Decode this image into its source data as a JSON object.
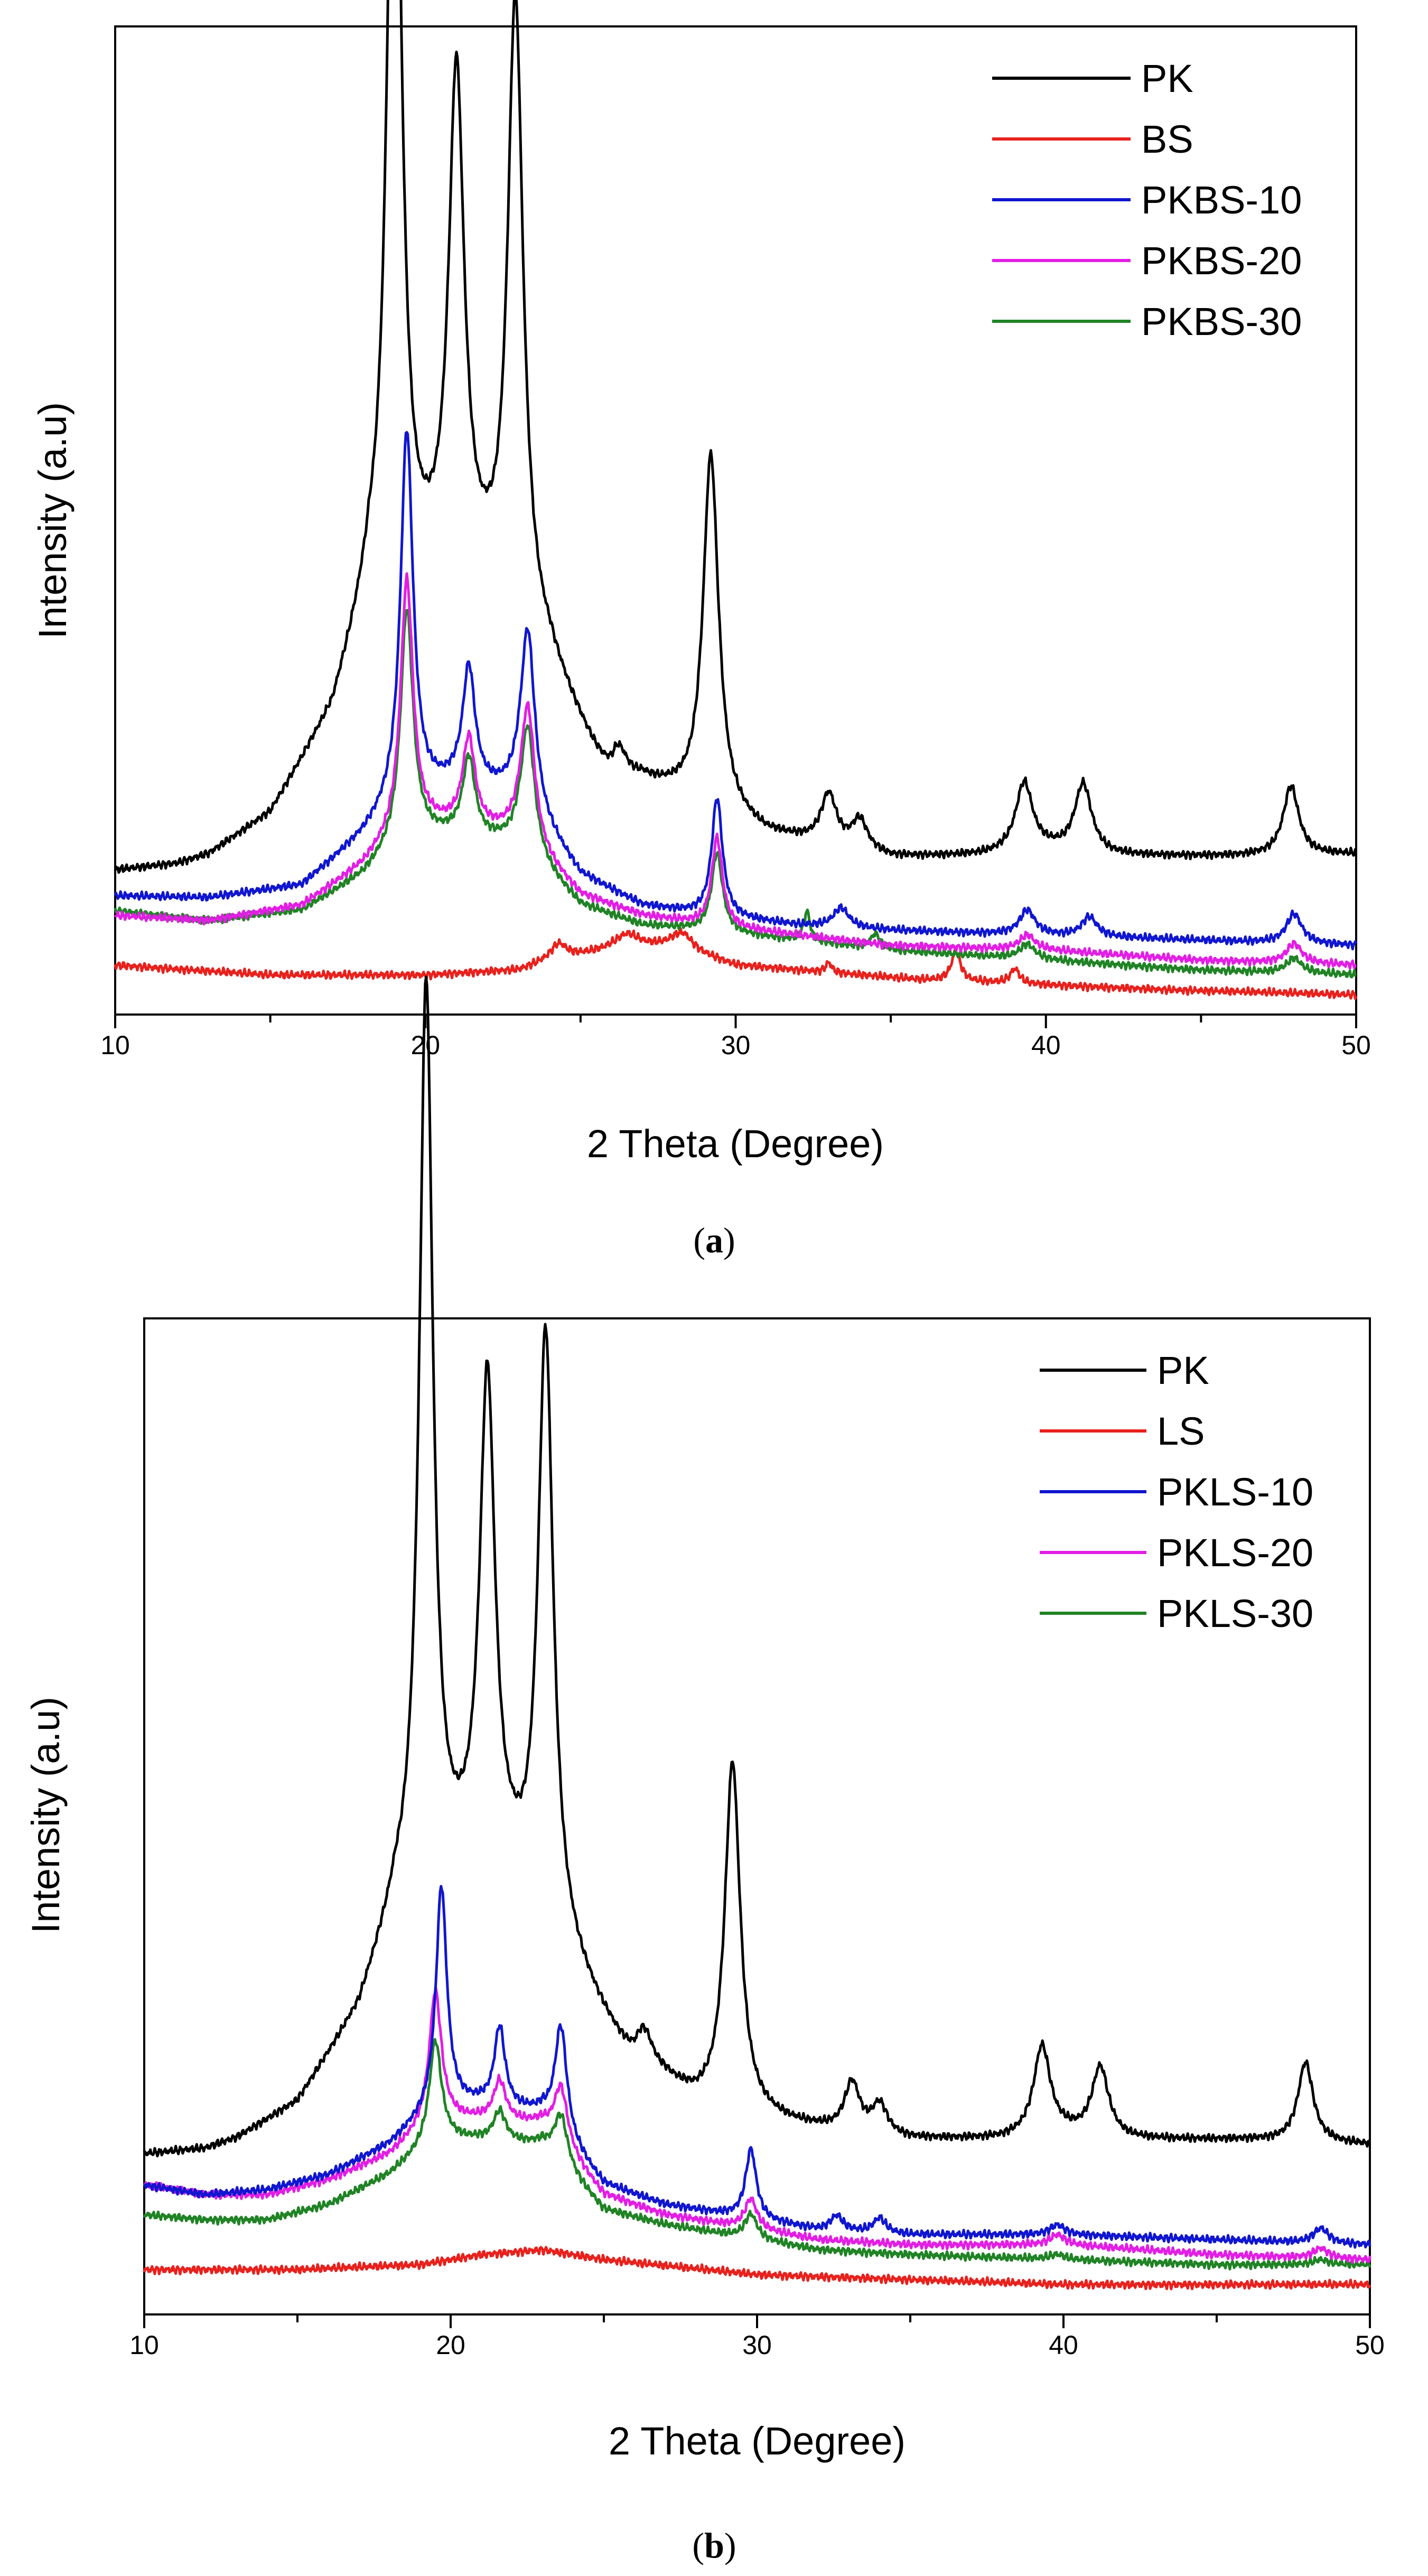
{
  "figure": {
    "panels": [
      "a",
      "b"
    ]
  },
  "chart_data": [
    {
      "type": "line",
      "panel_label": "a",
      "title": "",
      "xlabel": "2 Theta (Degree)",
      "ylabel": "Intensity (a.u)",
      "xlim": [
        10,
        50
      ],
      "ylim": [
        0,
        100
      ],
      "xticks": [
        10,
        20,
        30,
        40,
        50
      ],
      "yticks_shown": false,
      "legend_position": "top-right",
      "series": [
        {
          "name": "PK",
          "color": "#000000",
          "baseline": [
            [
              10,
              14.5
            ],
            [
              12,
              15.1
            ],
            [
              13,
              16
            ],
            [
              15,
              20
            ],
            [
              17,
              30
            ],
            [
              18.2,
              42
            ],
            [
              19,
              42
            ],
            [
              20,
              43
            ],
            [
              21,
              44
            ],
            [
              22,
              42
            ],
            [
              24,
              35
            ],
            [
              26,
              22
            ],
            [
              27,
              23
            ],
            [
              28,
              22
            ],
            [
              31,
              18
            ],
            [
              33,
              17
            ],
            [
              35,
              15.8
            ],
            [
              38,
              16
            ],
            [
              40,
              16.5
            ],
            [
              42,
              16
            ],
            [
              46,
              16
            ],
            [
              50,
              16.2
            ]
          ],
          "peaks": [
            [
              19.0,
              95,
              0.45
            ],
            [
              21.0,
              50,
              0.5
            ],
            [
              22.9,
              63,
              0.5
            ],
            [
              26.2,
              4,
              0.6
            ],
            [
              29.2,
              36,
              0.5
            ],
            [
              33.0,
              5,
              0.5
            ],
            [
              34.0,
              3,
              0.5
            ],
            [
              39.3,
              7,
              0.55
            ],
            [
              41.2,
              7,
              0.55
            ],
            [
              47.9,
              7,
              0.5
            ]
          ]
        },
        {
          "name": "BS",
          "color": "#e8211d",
          "baseline": [
            [
              10,
              5
            ],
            [
              15,
              4
            ],
            [
              20,
              4
            ],
            [
              23,
              4.5
            ],
            [
              24,
              5.5
            ],
            [
              26,
              6.5
            ],
            [
              28,
              7
            ],
            [
              30,
              5
            ],
            [
              32,
              4.5
            ],
            [
              36,
              3.5
            ],
            [
              40,
              3
            ],
            [
              44,
              2.5
            ],
            [
              50,
              2
            ]
          ],
          "peaks": [
            [
              24.3,
              1.5,
              0.5
            ],
            [
              26.5,
              1.5,
              0.8
            ],
            [
              28.3,
              1.5,
              0.6
            ],
            [
              33.0,
              1,
              0.2
            ],
            [
              37.1,
              3,
              0.3
            ],
            [
              39.0,
              1.5,
              0.3
            ]
          ]
        },
        {
          "name": "PKBS-10",
          "color": "#1016cf",
          "baseline": [
            [
              10,
              12
            ],
            [
              13,
              11.8
            ],
            [
              16,
              13
            ],
            [
              18,
              18
            ],
            [
              19.3,
              22
            ],
            [
              21,
              23
            ],
            [
              23,
              22
            ],
            [
              25,
              14
            ],
            [
              27,
              11
            ],
            [
              29,
              10
            ],
            [
              32,
              9
            ],
            [
              35,
              8.5
            ],
            [
              40,
              8
            ],
            [
              45,
              7.5
            ],
            [
              50,
              7
            ]
          ],
          "peaks": [
            [
              19.4,
              37,
              0.4
            ],
            [
              21.4,
              12,
              0.4
            ],
            [
              23.3,
              18,
              0.45
            ],
            [
              29.4,
              12,
              0.35
            ],
            [
              33.4,
              2,
              0.5
            ],
            [
              39.4,
              2.5,
              0.5
            ],
            [
              41.4,
              2,
              0.5
            ],
            [
              48.0,
              3,
              0.5
            ]
          ]
        },
        {
          "name": "PKBS-20",
          "color": "#e21ee4",
          "baseline": [
            [
              10,
              10
            ],
            [
              13,
              9.5
            ],
            [
              16,
              11
            ],
            [
              18,
              15
            ],
            [
              19.4,
              19
            ],
            [
              21,
              19
            ],
            [
              23,
              18
            ],
            [
              25,
              12
            ],
            [
              27,
              10
            ],
            [
              29,
              9
            ],
            [
              32,
              8
            ],
            [
              35,
              7
            ],
            [
              40,
              6.5
            ],
            [
              45,
              5.5
            ],
            [
              50,
              5
            ]
          ],
          "peaks": [
            [
              19.4,
              25,
              0.4
            ],
            [
              21.4,
              9,
              0.4
            ],
            [
              23.3,
              14,
              0.45
            ],
            [
              29.4,
              9,
              0.35
            ],
            [
              39.4,
              1.5,
              0.5
            ],
            [
              48.0,
              2,
              0.5
            ]
          ]
        },
        {
          "name": "PKBS-30",
          "color": "#208325",
          "baseline": [
            [
              10,
              10.5
            ],
            [
              13,
              9.5
            ],
            [
              16,
              10.5
            ],
            [
              18,
              14
            ],
            [
              19.4,
              18
            ],
            [
              21,
              18
            ],
            [
              23,
              17
            ],
            [
              25,
              11
            ],
            [
              27,
              9
            ],
            [
              29,
              8.5
            ],
            [
              32,
              7.5
            ],
            [
              35,
              6.5
            ],
            [
              40,
              5.5
            ],
            [
              45,
              4.5
            ],
            [
              50,
              4
            ]
          ],
          "peaks": [
            [
              19.4,
              23,
              0.4
            ],
            [
              21.4,
              8,
              0.4
            ],
            [
              23.3,
              13,
              0.45
            ],
            [
              29.4,
              8,
              0.35
            ],
            [
              32.3,
              3,
              0.2
            ],
            [
              34.5,
              1.5,
              0.3
            ],
            [
              39.4,
              1.5,
              0.5
            ],
            [
              48.0,
              1.5,
              0.5
            ]
          ]
        }
      ]
    },
    {
      "type": "line",
      "panel_label": "b",
      "title": "",
      "xlabel": "2 Theta (Degree)",
      "ylabel": "Intensity (a.u)",
      "xlim": [
        10,
        50
      ],
      "ylim": [
        0,
        100
      ],
      "xticks": [
        10,
        20,
        30,
        40,
        50
      ],
      "yticks_shown": false,
      "legend_position": "top-right",
      "series": [
        {
          "name": "PK",
          "color": "#000000",
          "baseline": [
            [
              10,
              16
            ],
            [
              12,
              16.5
            ],
            [
              13,
              17.5
            ],
            [
              15,
              21
            ],
            [
              17,
              30
            ],
            [
              18.2,
              40
            ],
            [
              19.2,
              42
            ],
            [
              20,
              43
            ],
            [
              21,
              44
            ],
            [
              22,
              42
            ],
            [
              24,
              34
            ],
            [
              26,
              24
            ],
            [
              27,
              23
            ],
            [
              28,
              21
            ],
            [
              31,
              19
            ],
            [
              33,
              18
            ],
            [
              35,
              17.5
            ],
            [
              38,
              17.5
            ],
            [
              40,
              18
            ],
            [
              42,
              17.5
            ],
            [
              46,
              17.5
            ],
            [
              50,
              17
            ]
          ],
          "peaks": [
            [
              19.2,
              91,
              0.45
            ],
            [
              21.2,
              49,
              0.5
            ],
            [
              23.1,
              60,
              0.5
            ],
            [
              26.3,
              4,
              0.6
            ],
            [
              29.2,
              35,
              0.5
            ],
            [
              33.1,
              5,
              0.5
            ],
            [
              34.0,
              3,
              0.5
            ],
            [
              39.3,
              9,
              0.55
            ],
            [
              41.2,
              7,
              0.55
            ],
            [
              47.9,
              8,
              0.5
            ]
          ]
        },
        {
          "name": "LS",
          "color": "#e8211d",
          "baseline": [
            [
              10,
              4.5
            ],
            [
              15,
              4.5
            ],
            [
              19,
              5
            ],
            [
              21,
              6
            ],
            [
              23,
              6.5
            ],
            [
              25,
              5.5
            ],
            [
              30,
              4
            ],
            [
              35,
              3.5
            ],
            [
              40,
              3
            ],
            [
              45,
              3
            ],
            [
              50,
              3
            ]
          ],
          "peaks": []
        },
        {
          "name": "PKLS-10",
          "color": "#1016cf",
          "baseline": [
            [
              10,
              13
            ],
            [
              12,
              12
            ],
            [
              14,
              12.5
            ],
            [
              16,
              14
            ],
            [
              18,
              17
            ],
            [
              19.6,
              21
            ],
            [
              21,
              21
            ],
            [
              23,
              20
            ],
            [
              25,
              13
            ],
            [
              27,
              11
            ],
            [
              29,
              10
            ],
            [
              32,
              8.5
            ],
            [
              35,
              8
            ],
            [
              40,
              8
            ],
            [
              45,
              7.5
            ],
            [
              50,
              7
            ]
          ],
          "peaks": [
            [
              19.7,
              22,
              0.35
            ],
            [
              21.6,
              8,
              0.35
            ],
            [
              23.6,
              11,
              0.4
            ],
            [
              29.8,
              7,
              0.35
            ],
            [
              32.6,
              1.5,
              0.4
            ],
            [
              34.0,
              1.5,
              0.4
            ],
            [
              39.8,
              1,
              0.5
            ],
            [
              48.4,
              1.5,
              0.5
            ]
          ]
        },
        {
          "name": "PKLS-20",
          "color": "#e21ee4",
          "baseline": [
            [
              10,
              13
            ],
            [
              12,
              12
            ],
            [
              14,
              12
            ],
            [
              16,
              13.5
            ],
            [
              18,
              16
            ],
            [
              19.5,
              19.5
            ],
            [
              21,
              19.5
            ],
            [
              23,
              19
            ],
            [
              25,
              12
            ],
            [
              27,
              10
            ],
            [
              29,
              9
            ],
            [
              32,
              7.5
            ],
            [
              35,
              7
            ],
            [
              40,
              7
            ],
            [
              45,
              6
            ],
            [
              50,
              5.5
            ]
          ],
          "peaks": [
            [
              19.5,
              13,
              0.4
            ],
            [
              21.6,
              4,
              0.4
            ],
            [
              23.6,
              6,
              0.45
            ],
            [
              29.8,
              3,
              0.4
            ],
            [
              39.8,
              1,
              0.5
            ],
            [
              48.4,
              1,
              0.5
            ]
          ]
        },
        {
          "name": "PKLS-30",
          "color": "#208325",
          "baseline": [
            [
              10,
              10
            ],
            [
              12,
              9.5
            ],
            [
              14,
              9.5
            ],
            [
              16,
              11
            ],
            [
              18,
              14
            ],
            [
              19.5,
              17.5
            ],
            [
              21,
              17.5
            ],
            [
              23,
              17
            ],
            [
              25,
              10.5
            ],
            [
              27,
              9
            ],
            [
              29,
              8
            ],
            [
              32,
              6.5
            ],
            [
              35,
              6
            ],
            [
              40,
              5.5
            ],
            [
              45,
              5
            ],
            [
              50,
              5
            ]
          ],
          "peaks": [
            [
              19.5,
              10,
              0.4
            ],
            [
              21.6,
              3,
              0.4
            ],
            [
              23.6,
              5,
              0.45
            ],
            [
              29.8,
              2.5,
              0.4
            ],
            [
              39.8,
              0.5,
              0.5
            ],
            [
              48.4,
              0.5,
              0.5
            ]
          ]
        }
      ]
    }
  ]
}
